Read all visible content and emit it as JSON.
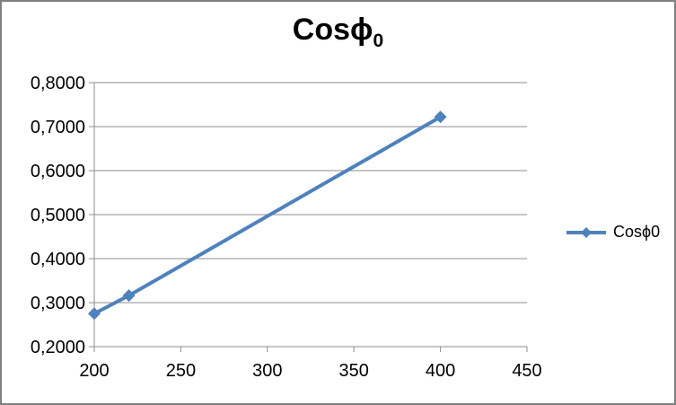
{
  "window": {
    "background": "#ffffff",
    "frame_border_color": "#7f7f7f"
  },
  "chart_data": {
    "type": "line",
    "title_main": "Cosϕ",
    "title_sub": "0",
    "series": [
      {
        "name": "Cosϕ0",
        "color": "#4f81bd",
        "marker": "diamond",
        "x": [
          200,
          220,
          400
        ],
        "y": [
          0.275,
          0.316,
          0.722
        ]
      }
    ],
    "xlabel": "",
    "ylabel": "",
    "xlim": [
      200,
      450
    ],
    "ylim": [
      0.2,
      0.8
    ],
    "x_ticks": [
      200,
      250,
      300,
      350,
      400,
      450
    ],
    "x_tick_labels": [
      "200",
      "250",
      "300",
      "350",
      "400",
      "450"
    ],
    "y_ticks": [
      0.2,
      0.3,
      0.4,
      0.5,
      0.6,
      0.7,
      0.8
    ],
    "y_tick_labels": [
      "0,2000",
      "0,3000",
      "0,4000",
      "0,5000",
      "0,6000",
      "0,7000",
      "0,8000"
    ],
    "decimal_separator": ",",
    "grid": "horizontal",
    "gridline_color": "#8c8c8c",
    "axis_color": "#8c8c8c",
    "text_color": "#000000",
    "legend_position": "right"
  }
}
